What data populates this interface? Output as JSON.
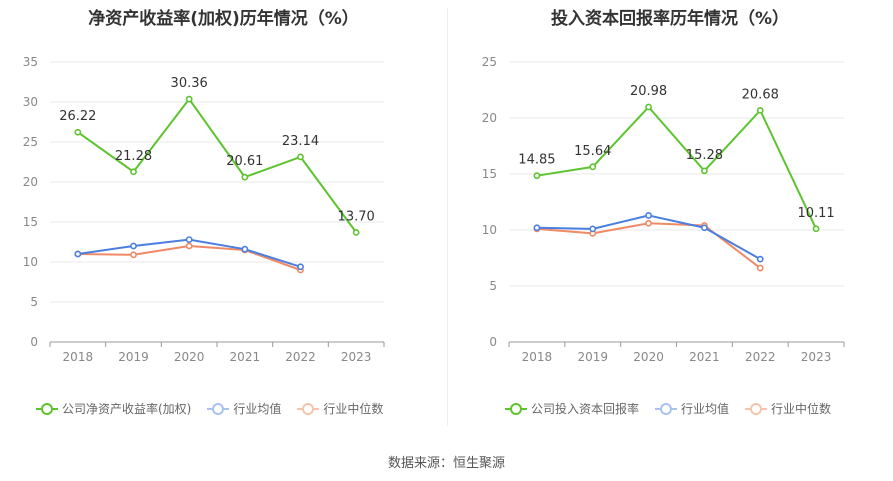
{
  "colors": {
    "company": "#5dc42e",
    "avg": "#4a7fe0",
    "median": "#f08a66",
    "grid": "#e8e8e8",
    "axis": "#999999"
  },
  "legend": {
    "avg": "行业均值",
    "median": "行业中位数"
  },
  "source": "数据来源：恒生聚源",
  "chart_data": [
    {
      "type": "line",
      "title": "净资产收益率(加权)历年情况（%）",
      "x": [
        "2018",
        "2019",
        "2020",
        "2021",
        "2022",
        "2023"
      ],
      "ylim": [
        0,
        35
      ],
      "yticks": [
        0,
        5,
        10,
        15,
        20,
        25,
        30,
        35
      ],
      "grid": true,
      "legend_position": "bottom",
      "series": [
        {
          "name": "公司净资产收益率(加权)",
          "values": [
            26.22,
            21.28,
            30.36,
            20.61,
            23.14,
            13.7
          ],
          "labels": [
            "26.22",
            "21.28",
            "30.36",
            "20.61",
            "23.14",
            "13.70"
          ]
        },
        {
          "name": "行业均值",
          "values": [
            11.0,
            12.0,
            12.8,
            11.6,
            9.4,
            null
          ]
        },
        {
          "name": "行业中位数",
          "values": [
            11.0,
            10.9,
            12.0,
            11.5,
            9.0,
            null
          ]
        }
      ]
    },
    {
      "type": "line",
      "title": "投入资本回报率历年情况（%）",
      "x": [
        "2018",
        "2019",
        "2020",
        "2021",
        "2022",
        "2023"
      ],
      "ylim": [
        0,
        25
      ],
      "yticks": [
        0,
        5,
        10,
        15,
        20,
        25
      ],
      "grid": true,
      "legend_position": "bottom",
      "series": [
        {
          "name": "公司投入资本回报率",
          "values": [
            14.85,
            15.64,
            20.98,
            15.28,
            20.68,
            10.11
          ],
          "labels": [
            "14.85",
            "15.64",
            "20.98",
            "15.28",
            "20.68",
            "10.11"
          ]
        },
        {
          "name": "行业均值",
          "values": [
            10.2,
            10.1,
            11.3,
            10.2,
            7.4,
            null
          ]
        },
        {
          "name": "行业中位数",
          "values": [
            10.1,
            9.7,
            10.6,
            10.4,
            6.6,
            null
          ]
        }
      ]
    }
  ]
}
